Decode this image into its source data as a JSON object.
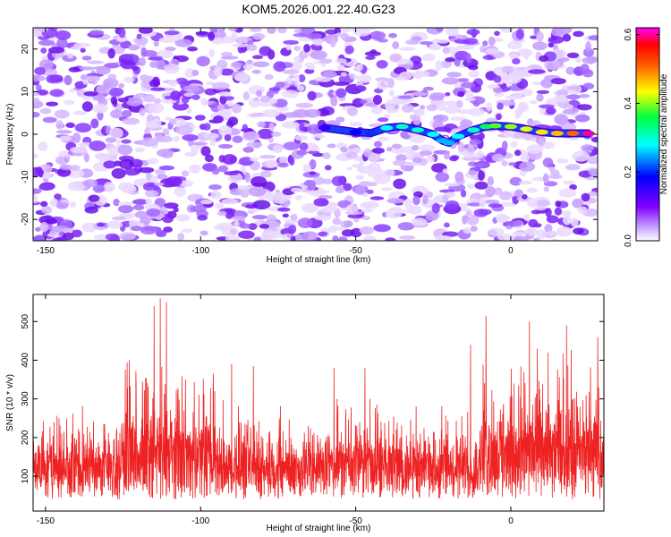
{
  "title": "KOM5.2026.001.22.40.G23",
  "chart_data": [
    {
      "type": "heatmap",
      "panel": "top",
      "description_ref": "spectrogram",
      "xlabel": "Height of straight line (km)",
      "ylabel": "Frequency (Hz)",
      "xlim": [
        -154,
        28
      ],
      "ylim": [
        -25,
        25
      ],
      "xticks": [
        -150,
        -100,
        -50,
        0
      ],
      "xtick_labels": [
        "-150",
        "-100",
        "-50",
        "0"
      ],
      "yticks": [
        -20,
        -10,
        0,
        10,
        20
      ],
      "ytick_labels": [
        "-20",
        "-10",
        "0",
        "10",
        "20"
      ],
      "ridge": {
        "x": [
          -60,
          -50,
          -45,
          -40,
          -35,
          -30,
          -25,
          -22,
          -20,
          -17,
          -12,
          -8,
          -5,
          0,
          5,
          10,
          15,
          20,
          25
        ],
        "y": [
          1.5,
          0.5,
          0.3,
          1.5,
          1.8,
          1.0,
          0.0,
          -1.5,
          -2.0,
          -0.5,
          1.0,
          1.8,
          2.0,
          1.8,
          1.2,
          0.5,
          0.2,
          0.2,
          0.2
        ],
        "amplitude": [
          0.15,
          0.18,
          0.2,
          0.28,
          0.3,
          0.3,
          0.28,
          0.25,
          0.25,
          0.28,
          0.3,
          0.35,
          0.38,
          0.4,
          0.42,
          0.44,
          0.46,
          0.5,
          0.6
        ]
      },
      "colorbar": {
        "label": "Normalized spectral amplitude",
        "range": [
          0.0,
          0.62
        ],
        "ticks": [
          0.0,
          0.2,
          0.4,
          0.6
        ],
        "tick_labels": [
          "0.0",
          "0.2",
          "0.4",
          "0.6"
        ],
        "colors": [
          "#ffffff",
          "#8000ff",
          "#0000ff",
          "#00ffff",
          "#00ff00",
          "#ffff00",
          "#ff8000",
          "#ff0000",
          "#ff00ff"
        ]
      }
    },
    {
      "type": "line",
      "panel": "bottom",
      "xlabel": "Height of straight line (km)",
      "ylabel": "SNR (10 * v/v)",
      "xlim": [
        -154,
        30
      ],
      "ylim": [
        10,
        570
      ],
      "xticks": [
        -150,
        -100,
        -50,
        0
      ],
      "xtick_labels": [
        "-150",
        "-100",
        "-50",
        "0"
      ],
      "yticks": [
        100,
        200,
        300,
        400,
        500
      ],
      "ytick_labels": [
        "100",
        "200",
        "300",
        "400",
        "500"
      ],
      "color": "#ee2222",
      "series_summary": "dense noisy SNR trace, mean about 170, range roughly 20 to 560",
      "peaks": [
        {
          "x": -123,
          "y": 400
        },
        {
          "x": -115,
          "y": 540
        },
        {
          "x": -113,
          "y": 560
        },
        {
          "x": -111,
          "y": 550
        },
        {
          "x": -90,
          "y": 390
        },
        {
          "x": -83,
          "y": 385
        },
        {
          "x": -57,
          "y": 380
        },
        {
          "x": -47,
          "y": 380
        },
        {
          "x": -13,
          "y": 440
        },
        {
          "x": -8,
          "y": 515
        },
        {
          "x": 6,
          "y": 500
        },
        {
          "x": 18,
          "y": 490
        },
        {
          "x": 28,
          "y": 460
        }
      ]
    }
  ]
}
